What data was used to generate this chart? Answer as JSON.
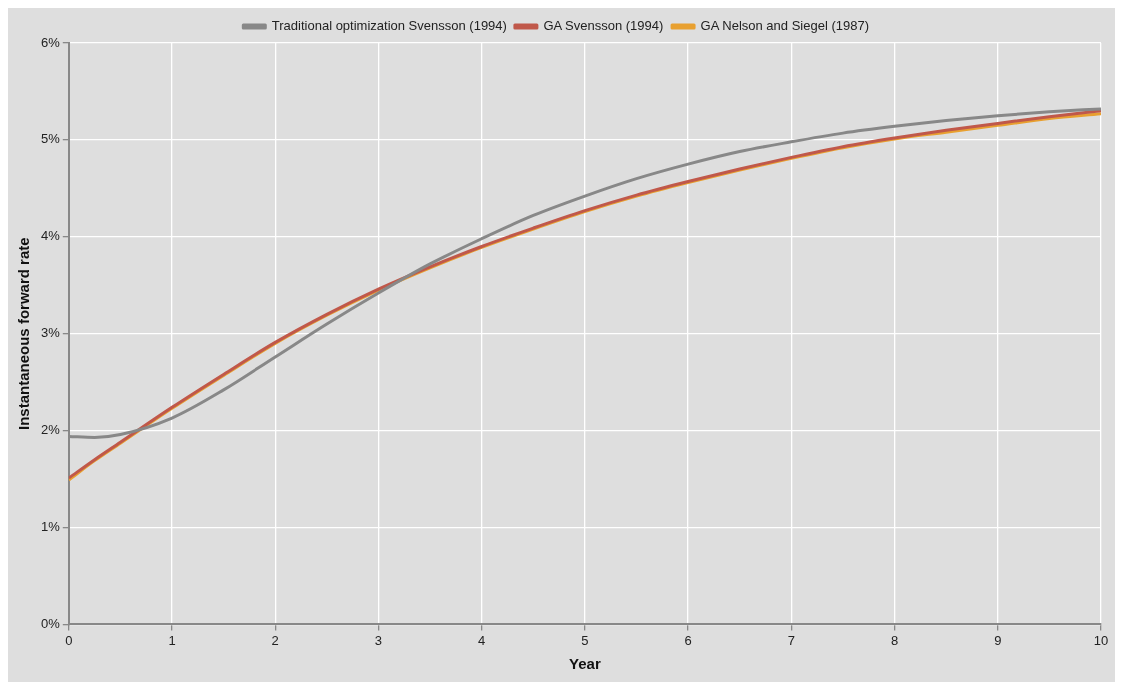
{
  "chart_data": {
    "type": "line",
    "xlabel": "Year",
    "ylabel": "Instantaneous forward rate",
    "x": [
      0,
      0.25,
      0.5,
      1,
      1.5,
      2,
      2.5,
      3,
      3.5,
      4,
      4.5,
      5,
      5.5,
      6,
      6.5,
      7,
      7.5,
      8,
      8.5,
      9,
      9.5,
      10
    ],
    "series": [
      {
        "name": "Traditional optimization Svensson (1994)",
        "color": "#888888",
        "values": [
          1.94,
          1.93,
          1.96,
          2.13,
          2.42,
          2.76,
          3.1,
          3.42,
          3.72,
          3.98,
          4.22,
          4.42,
          4.6,
          4.75,
          4.88,
          4.98,
          5.07,
          5.14,
          5.2,
          5.25,
          5.29,
          5.32
        ]
      },
      {
        "name": "GA Svensson (1994)",
        "color": "#c0584a",
        "values": [
          1.51,
          1.7,
          1.88,
          2.24,
          2.58,
          2.91,
          3.2,
          3.46,
          3.69,
          3.9,
          4.09,
          4.27,
          4.43,
          4.57,
          4.7,
          4.82,
          4.93,
          5.02,
          5.1,
          5.17,
          5.24,
          5.3
        ]
      },
      {
        "name": "GA Nelson and Siegel (1987)",
        "color": "#e8a030",
        "values": [
          1.49,
          1.69,
          1.87,
          2.23,
          2.57,
          2.9,
          3.19,
          3.45,
          3.68,
          3.89,
          4.08,
          4.26,
          4.42,
          4.56,
          4.69,
          4.81,
          4.92,
          5.01,
          5.08,
          5.15,
          5.22,
          5.27
        ]
      }
    ],
    "xlim": [
      0,
      10
    ],
    "xticks": [
      0,
      1,
      2,
      3,
      4,
      5,
      6,
      7,
      8,
      9,
      10
    ],
    "ylim": [
      0,
      6
    ],
    "yticks": [
      {
        "value": 0,
        "label": "0%"
      },
      {
        "value": 1,
        "label": "1%"
      },
      {
        "value": 2,
        "label": "2%"
      },
      {
        "value": 3,
        "label": "3%"
      },
      {
        "value": 4,
        "label": "4%"
      },
      {
        "value": 5,
        "label": "5%"
      },
      {
        "value": 6,
        "label": "6%"
      }
    ],
    "grid": true,
    "legend": "top",
    "marker": "none",
    "line_style": "solid"
  }
}
